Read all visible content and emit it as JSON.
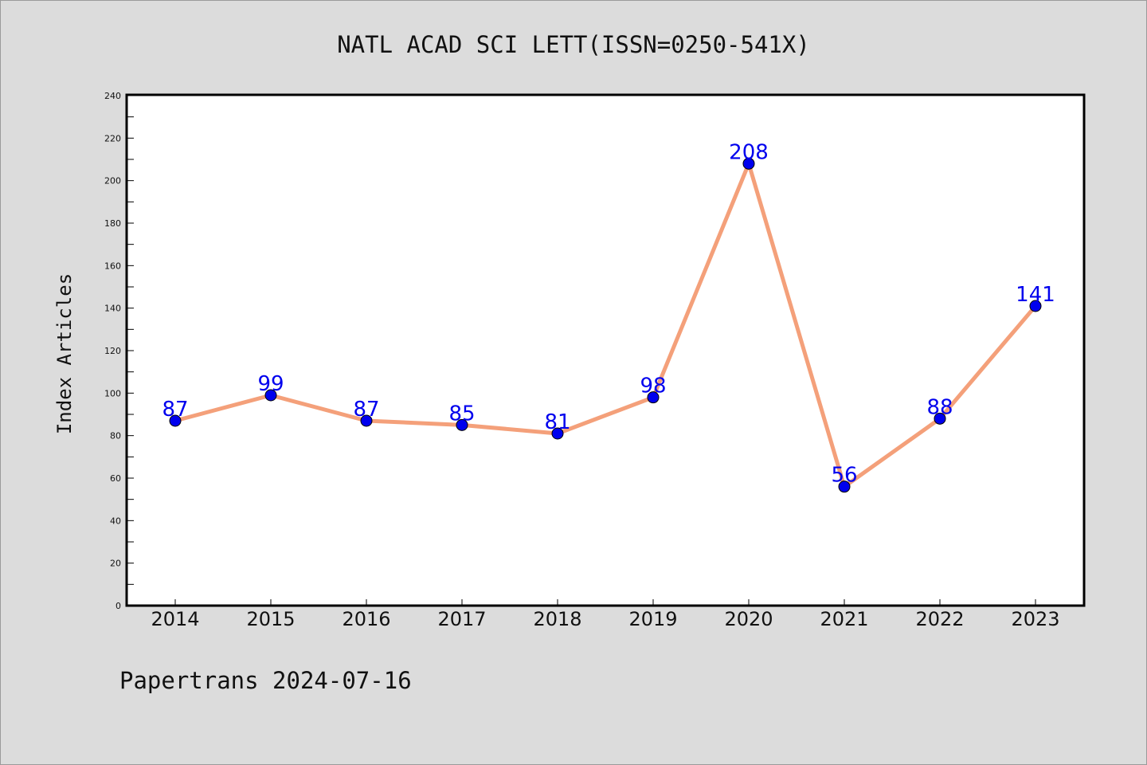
{
  "chart_data": {
    "type": "line",
    "title": "NATL ACAD SCI LETT(ISSN=0250-541X)",
    "xlabel": "",
    "ylabel": "Index Articles",
    "categories": [
      "2014",
      "2015",
      "2016",
      "2017",
      "2018",
      "2019",
      "2020",
      "2021",
      "2022",
      "2023"
    ],
    "series": [
      {
        "values": [
          87,
          99,
          87,
          85,
          81,
          98,
          208,
          56,
          88,
          141
        ]
      }
    ],
    "data_labels": [
      "87",
      "99",
      "87",
      "85",
      "81",
      "98",
      "208",
      "56",
      "88",
      "141"
    ],
    "ylim": [
      0,
      240
    ],
    "yticks": [
      "0",
      "20",
      "40",
      "60",
      "80",
      "100",
      "120",
      "140",
      "160",
      "180",
      "200",
      "220",
      "240"
    ],
    "grid": false,
    "line_color": "#f4a07a",
    "marker_color": "#0000ee",
    "label_color": "#0000ee"
  },
  "footer": "Papertrans 2024-07-16"
}
